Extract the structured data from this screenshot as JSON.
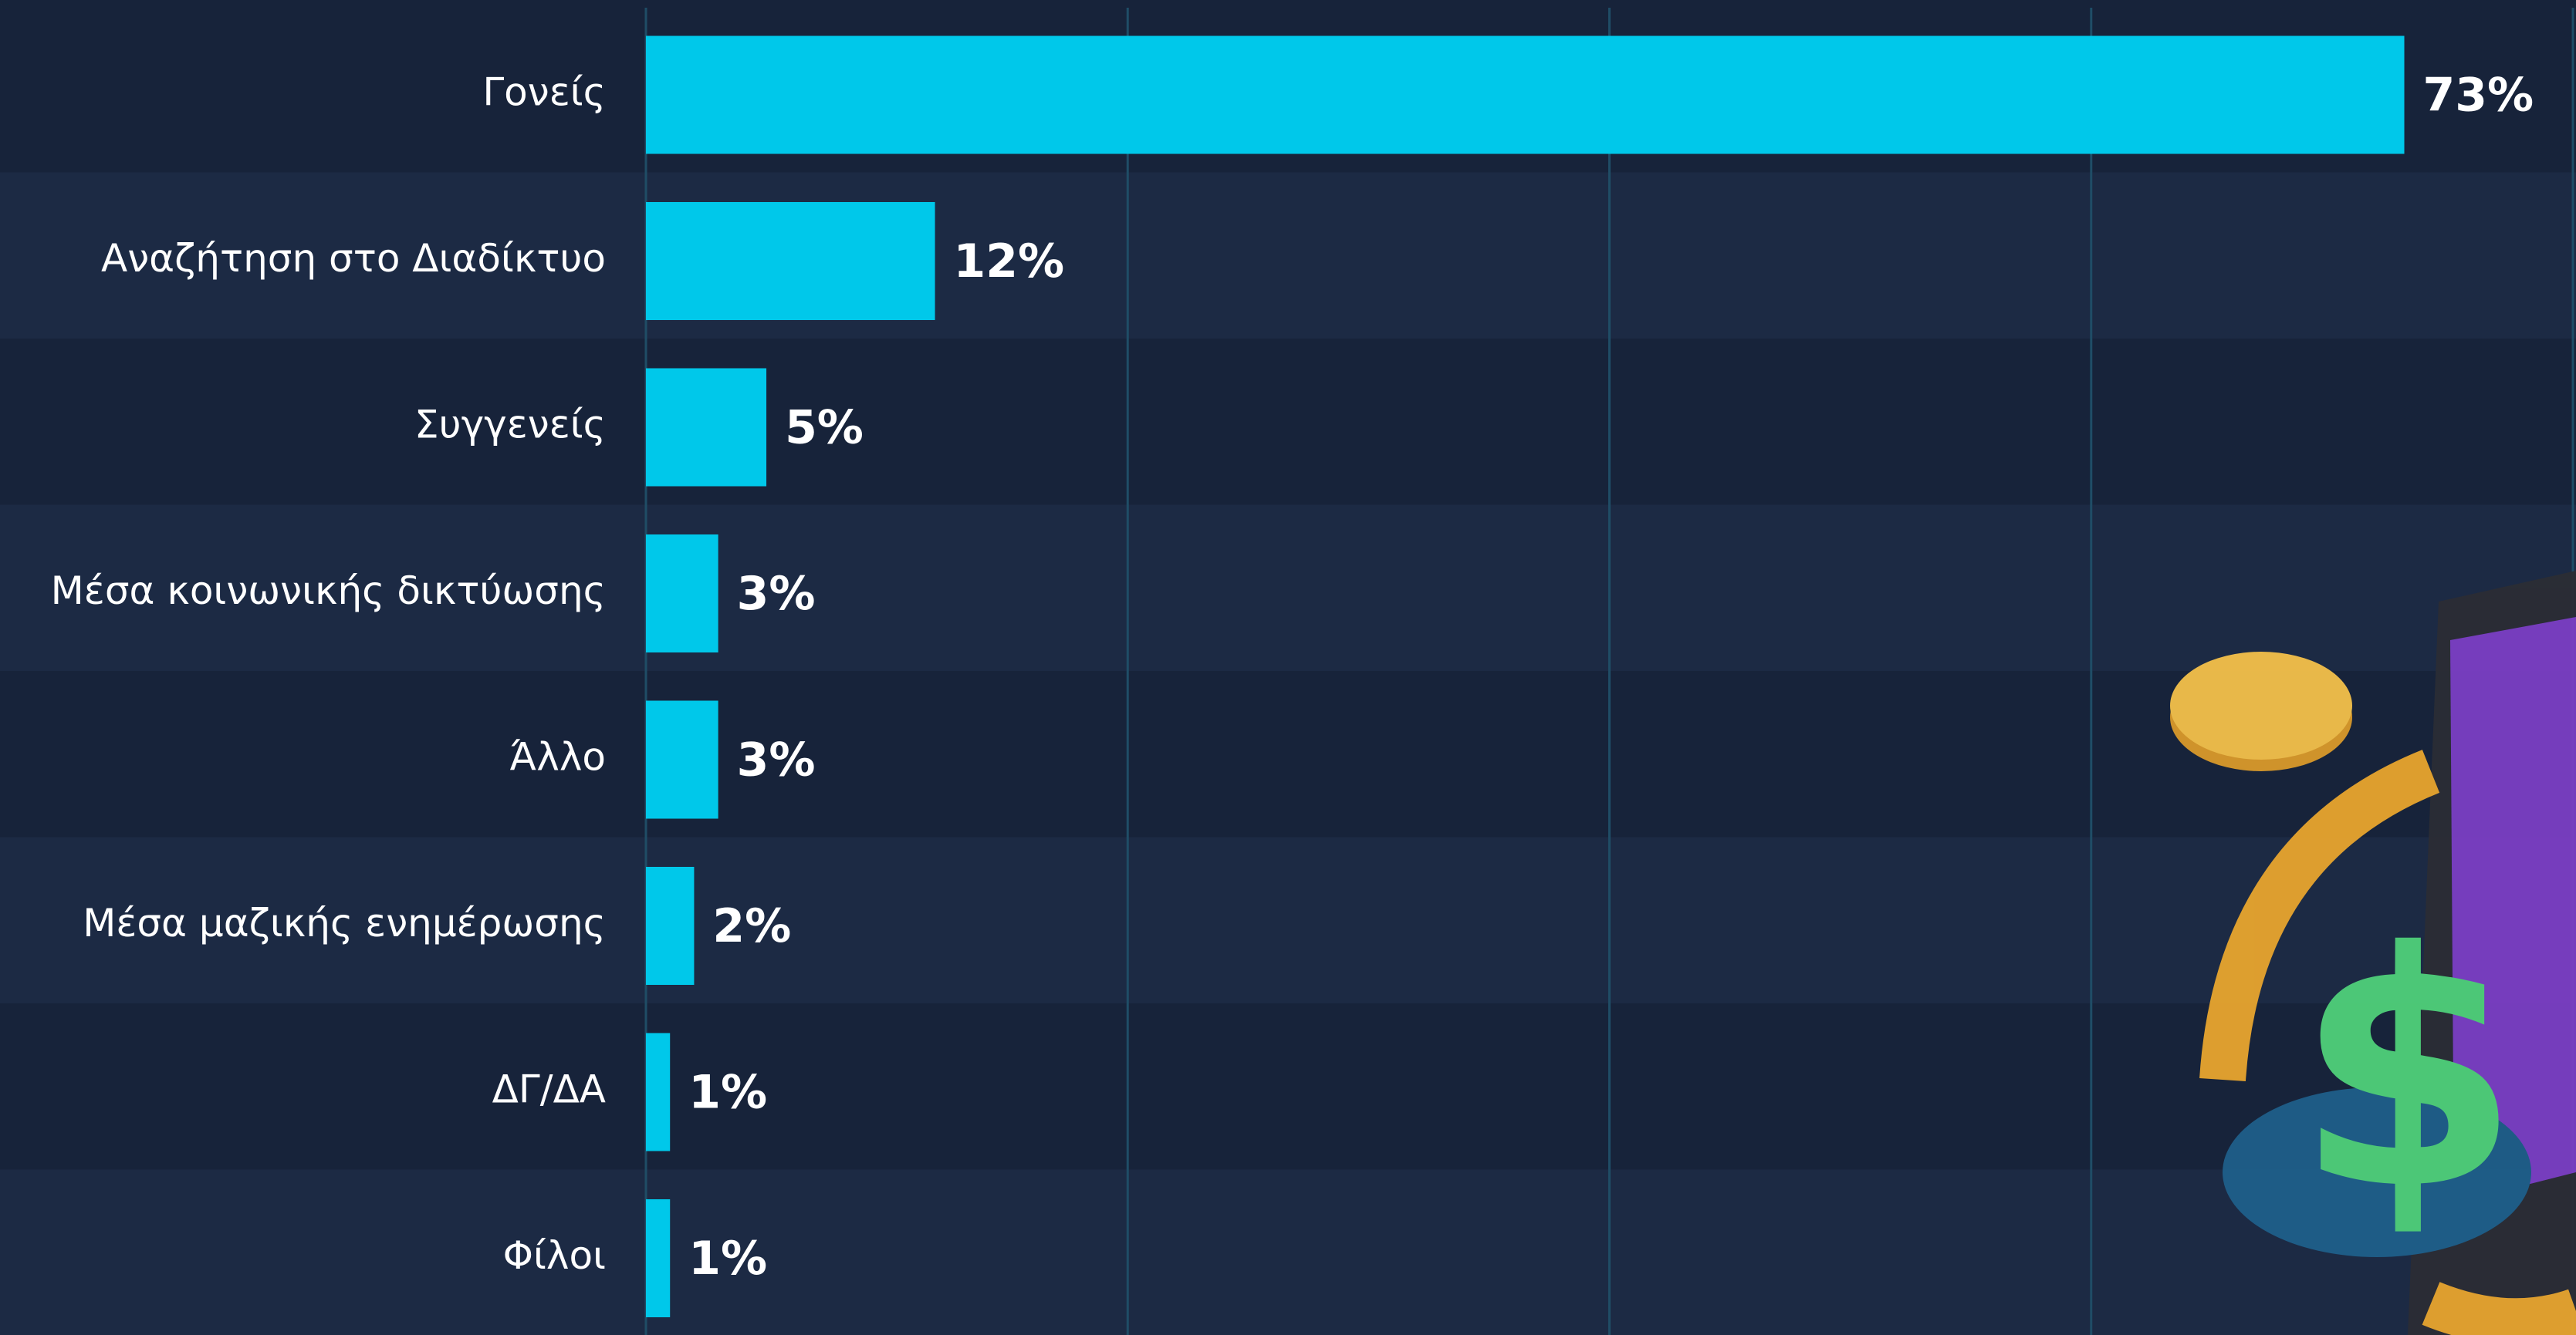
{
  "chart_data": {
    "type": "barh",
    "categories": [
      "Γονείς",
      "Αναζήτηση στο Διαδίκτυο",
      "Συγγενείς",
      "Μέσα κοινωνικής δικτύωσης",
      "Άλλο",
      "Μέσα μαζικής ενημέρωσης",
      "ΔΓ/ΔΑ",
      "Φίλοι"
    ],
    "values": [
      73,
      12,
      5,
      3,
      3,
      2,
      1,
      1
    ],
    "value_labels": [
      "73%",
      "12%",
      "5%",
      "3%",
      "3%",
      "2%",
      "1%",
      "1%"
    ],
    "color": "#00c8ea",
    "xlim": [
      0,
      80
    ],
    "xticks": [
      0,
      20,
      40,
      60,
      80
    ],
    "grid": true
  }
}
